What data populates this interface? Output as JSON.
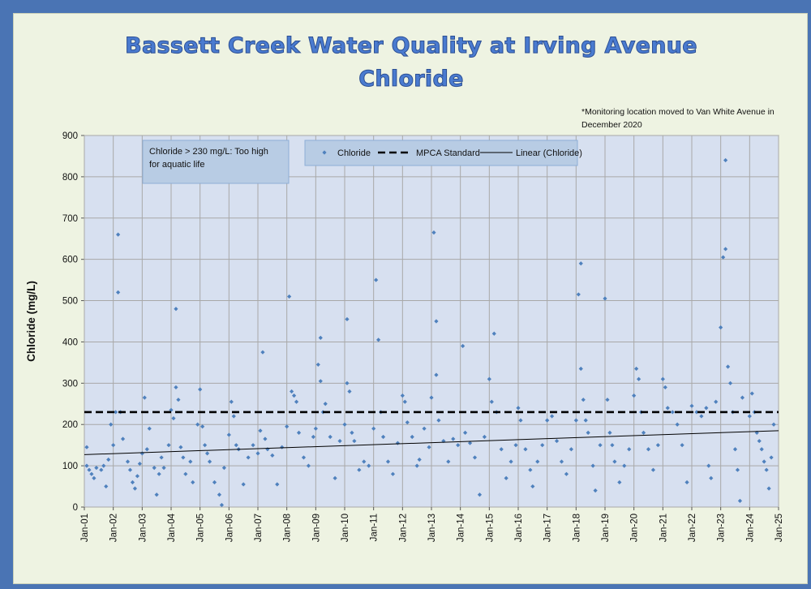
{
  "chart_data": {
    "type": "scatter",
    "title": "Bassett Creek Water Quality at Irving Avenue",
    "subtitle": "Chloride",
    "note": "*Monitoring location moved to Van White Avenue in December 2020",
    "ylabel": "Chloride (mg/L)",
    "xlabel": "",
    "ylim": [
      0,
      900
    ],
    "yticks": [
      0,
      100,
      200,
      300,
      400,
      500,
      600,
      700,
      800,
      900
    ],
    "xlim": [
      "2001-01",
      "2025-01"
    ],
    "xticks": [
      "Jan-01",
      "Jan-02",
      "Jan-03",
      "Jan-04",
      "Jan-05",
      "Jan-06",
      "Jan-07",
      "Jan-08",
      "Jan-09",
      "Jan-10",
      "Jan-11",
      "Jan-12",
      "Jan-13",
      "Jan-14",
      "Jan-15",
      "Jan-16",
      "Jan-17",
      "Jan-18",
      "Jan-19",
      "Jan-20",
      "Jan-21",
      "Jan-22",
      "Jan-23",
      "Jan-24",
      "Jan-25"
    ],
    "grid": true,
    "legend_position": "top",
    "annotation": "Chloride > 230 mg/L: Too high for aquatic life",
    "colors": {
      "points": "#4f81bd",
      "plot_bg": "#d7e0f0",
      "grid": "#a8a8a8"
    },
    "series": [
      {
        "name": "Chloride",
        "type": "scatter",
        "points": [
          [
            "2001-02",
            145
          ],
          [
            "2001-02",
            100
          ],
          [
            "2001-03",
            90
          ],
          [
            "2001-04",
            80
          ],
          [
            "2001-05",
            70
          ],
          [
            "2001-06",
            95
          ],
          [
            "2001-08",
            90
          ],
          [
            "2001-09",
            100
          ],
          [
            "2001-10",
            50
          ],
          [
            "2001-11",
            115
          ],
          [
            "2001-12",
            200
          ],
          [
            "2002-01",
            150
          ],
          [
            "2002-02",
            230
          ],
          [
            "2002-03",
            660
          ],
          [
            "2002-03",
            520
          ],
          [
            "2002-04",
            230
          ],
          [
            "2002-05",
            165
          ],
          [
            "2002-07",
            110
          ],
          [
            "2002-08",
            90
          ],
          [
            "2002-09",
            60
          ],
          [
            "2002-10",
            45
          ],
          [
            "2002-11",
            75
          ],
          [
            "2002-12",
            105
          ],
          [
            "2003-01",
            130
          ],
          [
            "2003-02",
            265
          ],
          [
            "2003-03",
            140
          ],
          [
            "2003-04",
            190
          ],
          [
            "2003-06",
            95
          ],
          [
            "2003-07",
            30
          ],
          [
            "2003-08",
            80
          ],
          [
            "2003-09",
            120
          ],
          [
            "2003-10",
            95
          ],
          [
            "2003-12",
            150
          ],
          [
            "2004-01",
            235
          ],
          [
            "2004-02",
            215
          ],
          [
            "2004-03",
            480
          ],
          [
            "2004-03",
            290
          ],
          [
            "2004-04",
            260
          ],
          [
            "2004-05",
            145
          ],
          [
            "2004-06",
            120
          ],
          [
            "2004-07",
            80
          ],
          [
            "2004-09",
            110
          ],
          [
            "2004-10",
            60
          ],
          [
            "2004-12",
            200
          ],
          [
            "2005-01",
            285
          ],
          [
            "2005-02",
            195
          ],
          [
            "2005-03",
            150
          ],
          [
            "2005-04",
            130
          ],
          [
            "2005-05",
            110
          ],
          [
            "2005-07",
            60
          ],
          [
            "2005-09",
            30
          ],
          [
            "2005-10",
            5
          ],
          [
            "2005-11",
            95
          ],
          [
            "2006-01",
            175
          ],
          [
            "2006-02",
            255
          ],
          [
            "2006-03",
            220
          ],
          [
            "2006-04",
            150
          ],
          [
            "2006-05",
            140
          ],
          [
            "2006-07",
            55
          ],
          [
            "2006-09",
            120
          ],
          [
            "2006-11",
            150
          ],
          [
            "2007-01",
            130
          ],
          [
            "2007-02",
            185
          ],
          [
            "2007-03",
            375
          ],
          [
            "2007-04",
            165
          ],
          [
            "2007-05",
            140
          ],
          [
            "2007-07",
            125
          ],
          [
            "2007-09",
            55
          ],
          [
            "2007-11",
            145
          ],
          [
            "2008-01",
            195
          ],
          [
            "2008-02",
            510
          ],
          [
            "2008-03",
            280
          ],
          [
            "2008-04",
            270
          ],
          [
            "2008-05",
            255
          ],
          [
            "2008-06",
            180
          ],
          [
            "2008-08",
            120
          ],
          [
            "2008-10",
            100
          ],
          [
            "2008-12",
            170
          ],
          [
            "2009-01",
            190
          ],
          [
            "2009-02",
            345
          ],
          [
            "2009-03",
            410
          ],
          [
            "2009-03",
            305
          ],
          [
            "2009-04",
            230
          ],
          [
            "2009-05",
            250
          ],
          [
            "2009-07",
            170
          ],
          [
            "2009-09",
            70
          ],
          [
            "2009-11",
            160
          ],
          [
            "2010-01",
            200
          ],
          [
            "2010-02",
            455
          ],
          [
            "2010-02",
            300
          ],
          [
            "2010-03",
            280
          ],
          [
            "2010-04",
            180
          ],
          [
            "2010-05",
            160
          ],
          [
            "2010-07",
            90
          ],
          [
            "2010-09",
            110
          ],
          [
            "2010-11",
            100
          ],
          [
            "2011-01",
            190
          ],
          [
            "2011-02",
            550
          ],
          [
            "2011-03",
            405
          ],
          [
            "2011-04",
            230
          ],
          [
            "2011-05",
            170
          ],
          [
            "2011-07",
            110
          ],
          [
            "2011-09",
            80
          ],
          [
            "2011-11",
            155
          ],
          [
            "2012-01",
            270
          ],
          [
            "2012-02",
            255
          ],
          [
            "2012-03",
            205
          ],
          [
            "2012-05",
            170
          ],
          [
            "2012-07",
            100
          ],
          [
            "2012-08",
            115
          ],
          [
            "2012-10",
            190
          ],
          [
            "2012-12",
            145
          ],
          [
            "2013-01",
            265
          ],
          [
            "2013-02",
            665
          ],
          [
            "2013-03",
            450
          ],
          [
            "2013-03",
            320
          ],
          [
            "2013-04",
            210
          ],
          [
            "2013-06",
            160
          ],
          [
            "2013-08",
            110
          ],
          [
            "2013-10",
            165
          ],
          [
            "2013-12",
            150
          ],
          [
            "2014-02",
            390
          ],
          [
            "2014-03",
            180
          ],
          [
            "2014-05",
            155
          ],
          [
            "2014-07",
            120
          ],
          [
            "2014-09",
            30
          ],
          [
            "2014-11",
            170
          ],
          [
            "2015-01",
            310
          ],
          [
            "2015-02",
            255
          ],
          [
            "2015-03",
            420
          ],
          [
            "2015-04",
            230
          ],
          [
            "2015-06",
            140
          ],
          [
            "2015-08",
            70
          ],
          [
            "2015-10",
            110
          ],
          [
            "2015-12",
            150
          ],
          [
            "2016-01",
            240
          ],
          [
            "2016-02",
            210
          ],
          [
            "2016-04",
            140
          ],
          [
            "2016-06",
            90
          ],
          [
            "2016-07",
            50
          ],
          [
            "2016-09",
            110
          ],
          [
            "2016-11",
            150
          ],
          [
            "2017-01",
            210
          ],
          [
            "2017-03",
            220
          ],
          [
            "2017-05",
            160
          ],
          [
            "2017-07",
            110
          ],
          [
            "2017-09",
            80
          ],
          [
            "2017-11",
            140
          ],
          [
            "2018-01",
            210
          ],
          [
            "2018-02",
            515
          ],
          [
            "2018-03",
            590
          ],
          [
            "2018-03",
            335
          ],
          [
            "2018-04",
            260
          ],
          [
            "2018-05",
            210
          ],
          [
            "2018-06",
            180
          ],
          [
            "2018-08",
            100
          ],
          [
            "2018-09",
            40
          ],
          [
            "2018-11",
            150
          ],
          [
            "2019-01",
            505
          ],
          [
            "2019-02",
            260
          ],
          [
            "2019-03",
            180
          ],
          [
            "2019-04",
            150
          ],
          [
            "2019-05",
            110
          ],
          [
            "2019-07",
            60
          ],
          [
            "2019-09",
            100
          ],
          [
            "2019-11",
            140
          ],
          [
            "2020-01",
            270
          ],
          [
            "2020-02",
            335
          ],
          [
            "2020-03",
            310
          ],
          [
            "2020-04",
            230
          ],
          [
            "2020-05",
            180
          ],
          [
            "2020-07",
            140
          ],
          [
            "2020-09",
            90
          ],
          [
            "2020-11",
            150
          ],
          [
            "2021-01",
            310
          ],
          [
            "2021-02",
            290
          ],
          [
            "2021-03",
            240
          ],
          [
            "2021-05",
            230
          ],
          [
            "2021-07",
            200
          ],
          [
            "2021-09",
            150
          ],
          [
            "2021-11",
            60
          ],
          [
            "2022-01",
            245
          ],
          [
            "2022-03",
            230
          ],
          [
            "2022-05",
            220
          ],
          [
            "2022-07",
            240
          ],
          [
            "2022-08",
            100
          ],
          [
            "2022-09",
            70
          ],
          [
            "2022-11",
            255
          ],
          [
            "2023-01",
            435
          ],
          [
            "2023-02",
            605
          ],
          [
            "2023-03",
            840
          ],
          [
            "2023-03",
            625
          ],
          [
            "2023-04",
            340
          ],
          [
            "2023-05",
            300
          ],
          [
            "2023-06",
            230
          ],
          [
            "2023-07",
            140
          ],
          [
            "2023-08",
            90
          ],
          [
            "2023-09",
            15
          ],
          [
            "2023-10",
            265
          ],
          [
            "2024-01",
            220
          ],
          [
            "2024-02",
            275
          ],
          [
            "2024-03",
            230
          ],
          [
            "2024-04",
            180
          ],
          [
            "2024-05",
            160
          ],
          [
            "2024-06",
            140
          ],
          [
            "2024-07",
            110
          ],
          [
            "2024-08",
            90
          ],
          [
            "2024-09",
            45
          ],
          [
            "2024-10",
            120
          ],
          [
            "2024-11",
            200
          ]
        ]
      },
      {
        "name": "MPCA Standard",
        "type": "line",
        "style": "dashed",
        "y": 230
      },
      {
        "name": "Linear (Chloride)",
        "type": "trendline",
        "start": [
          "2001-01",
          127
        ],
        "end": [
          "2025-01",
          185
        ]
      }
    ]
  }
}
